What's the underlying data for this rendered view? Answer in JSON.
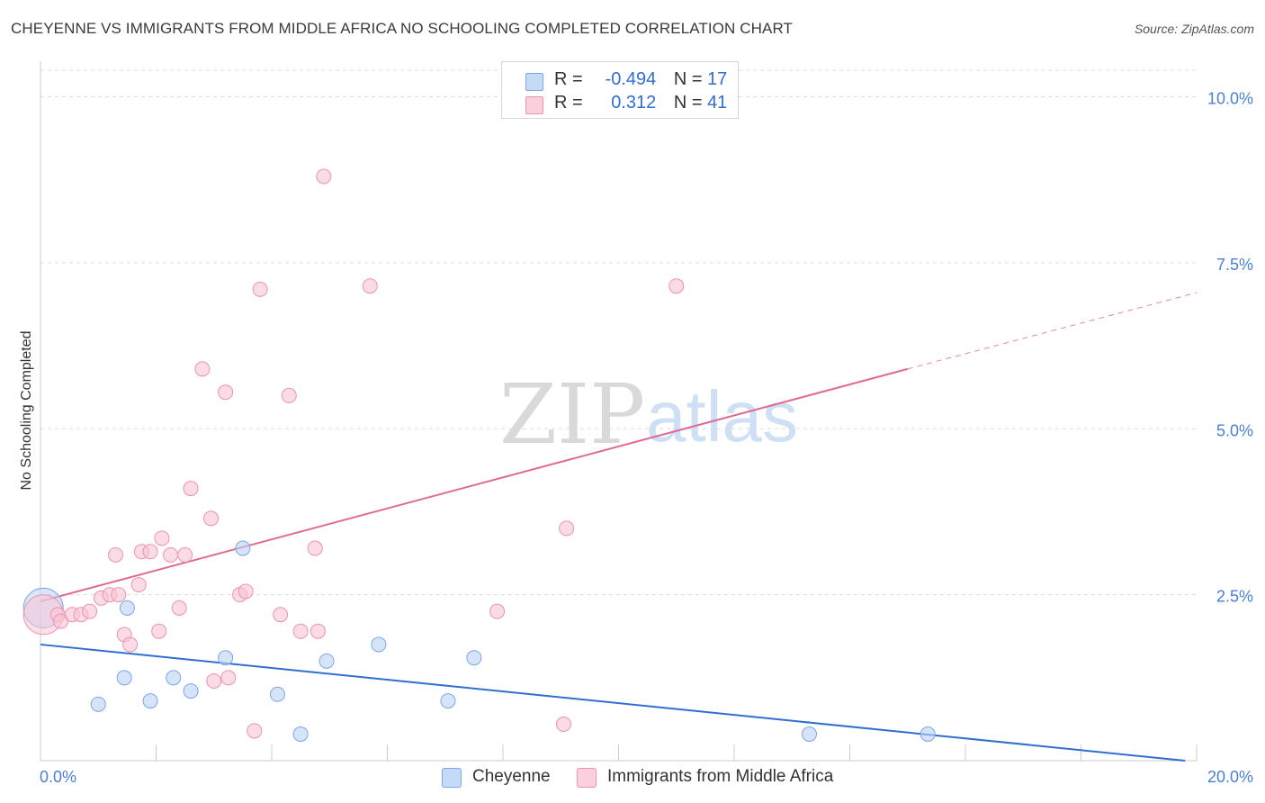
{
  "title": "CHEYENNE VS IMMIGRANTS FROM MIDDLE AFRICA NO SCHOOLING COMPLETED CORRELATION CHART",
  "source": "Source: ZipAtlas.com",
  "watermark": {
    "zip": "ZIP",
    "atlas": "atlas"
  },
  "legend": {
    "series1": {
      "r_label": "R =",
      "r_value": "-0.494",
      "n_label": "N =",
      "n_value": "17"
    },
    "series2": {
      "r_label": "R =",
      "r_value": "0.312",
      "n_label": "N =",
      "n_value": "41"
    }
  },
  "bottom_legend": {
    "series1": "Cheyenne",
    "series2": "Immigrants from Middle Africa"
  },
  "colors": {
    "blue_fill": "#b9d2f5",
    "blue_stroke": "#7ea6e3",
    "blue_line": "#2f6fd1",
    "pink_fill": "#f9c5d5",
    "pink_stroke": "#ee92ae",
    "pink_line": "#e06a93",
    "grid": "#dcdcdc",
    "axis_text": "#4a7fd6"
  },
  "chart_data": {
    "type": "scatter",
    "title": "CHEYENNE VS IMMIGRANTS FROM MIDDLE AFRICA NO SCHOOLING COMPLETED CORRELATION CHART",
    "xlabel": "",
    "ylabel": "No Schooling Completed",
    "xlim": [
      0,
      20
    ],
    "ylim": [
      0,
      10.4
    ],
    "x_tick_labels": {
      "min": "0.0%",
      "max": "20.0%"
    },
    "y_ticks": [
      2.5,
      5.0,
      7.5,
      10.0
    ],
    "y_tick_labels": [
      "2.5%",
      "5.0%",
      "7.5%",
      "10.0%"
    ],
    "series": [
      {
        "name": "Cheyenne",
        "color": "blue",
        "points": [
          {
            "x": 0.05,
            "y": 2.3,
            "big": true
          },
          {
            "x": 1.0,
            "y": 0.85
          },
          {
            "x": 1.5,
            "y": 2.3
          },
          {
            "x": 1.45,
            "y": 1.25
          },
          {
            "x": 1.9,
            "y": 0.9
          },
          {
            "x": 2.3,
            "y": 1.25
          },
          {
            "x": 2.6,
            "y": 1.05
          },
          {
            "x": 3.2,
            "y": 1.55
          },
          {
            "x": 3.5,
            "y": 3.2
          },
          {
            "x": 4.1,
            "y": 1.0
          },
          {
            "x": 4.5,
            "y": 0.4
          },
          {
            "x": 4.95,
            "y": 1.5
          },
          {
            "x": 5.85,
            "y": 1.75
          },
          {
            "x": 7.05,
            "y": 0.9
          },
          {
            "x": 7.5,
            "y": 1.55
          },
          {
            "x": 13.3,
            "y": 0.4
          },
          {
            "x": 15.35,
            "y": 0.4
          }
        ],
        "trend": {
          "x0": 0,
          "y0": 1.75,
          "x1": 19.8,
          "y1": 0.0,
          "dashed_to": null
        }
      },
      {
        "name": "Immigrants from Middle Africa",
        "color": "pink",
        "points": [
          {
            "x": 0.05,
            "y": 2.2,
            "big": true
          },
          {
            "x": 0.3,
            "y": 2.2
          },
          {
            "x": 0.35,
            "y": 2.1
          },
          {
            "x": 0.55,
            "y": 2.2
          },
          {
            "x": 0.7,
            "y": 2.2
          },
          {
            "x": 0.85,
            "y": 2.25
          },
          {
            "x": 1.05,
            "y": 2.45
          },
          {
            "x": 1.2,
            "y": 2.5
          },
          {
            "x": 1.3,
            "y": 3.1
          },
          {
            "x": 1.35,
            "y": 2.5
          },
          {
            "x": 1.45,
            "y": 1.9
          },
          {
            "x": 1.55,
            "y": 1.75
          },
          {
            "x": 1.7,
            "y": 2.65
          },
          {
            "x": 1.75,
            "y": 3.15
          },
          {
            "x": 1.9,
            "y": 3.15
          },
          {
            "x": 2.05,
            "y": 1.95
          },
          {
            "x": 2.1,
            "y": 3.35
          },
          {
            "x": 2.25,
            "y": 3.1
          },
          {
            "x": 2.4,
            "y": 2.3
          },
          {
            "x": 2.5,
            "y": 3.1
          },
          {
            "x": 2.6,
            "y": 4.1
          },
          {
            "x": 2.8,
            "y": 5.9
          },
          {
            "x": 2.95,
            "y": 3.65
          },
          {
            "x": 3.0,
            "y": 1.2
          },
          {
            "x": 3.2,
            "y": 5.55
          },
          {
            "x": 3.25,
            "y": 1.25
          },
          {
            "x": 3.45,
            "y": 2.5
          },
          {
            "x": 3.55,
            "y": 2.55
          },
          {
            "x": 3.7,
            "y": 0.45
          },
          {
            "x": 3.8,
            "y": 7.1
          },
          {
            "x": 4.15,
            "y": 2.2
          },
          {
            "x": 4.3,
            "y": 5.5
          },
          {
            "x": 4.5,
            "y": 1.95
          },
          {
            "x": 4.75,
            "y": 3.2
          },
          {
            "x": 4.8,
            "y": 1.95
          },
          {
            "x": 4.9,
            "y": 8.8
          },
          {
            "x": 5.7,
            "y": 7.15
          },
          {
            "x": 7.9,
            "y": 2.25
          },
          {
            "x": 9.05,
            "y": 0.55
          },
          {
            "x": 9.1,
            "y": 3.5
          },
          {
            "x": 11.0,
            "y": 7.15
          }
        ],
        "trend": {
          "x0": 0,
          "y0": 2.4,
          "x1": 15.0,
          "y1": 5.9,
          "dashed_to": {
            "x": 20.0,
            "y": 7.05
          }
        }
      }
    ]
  }
}
